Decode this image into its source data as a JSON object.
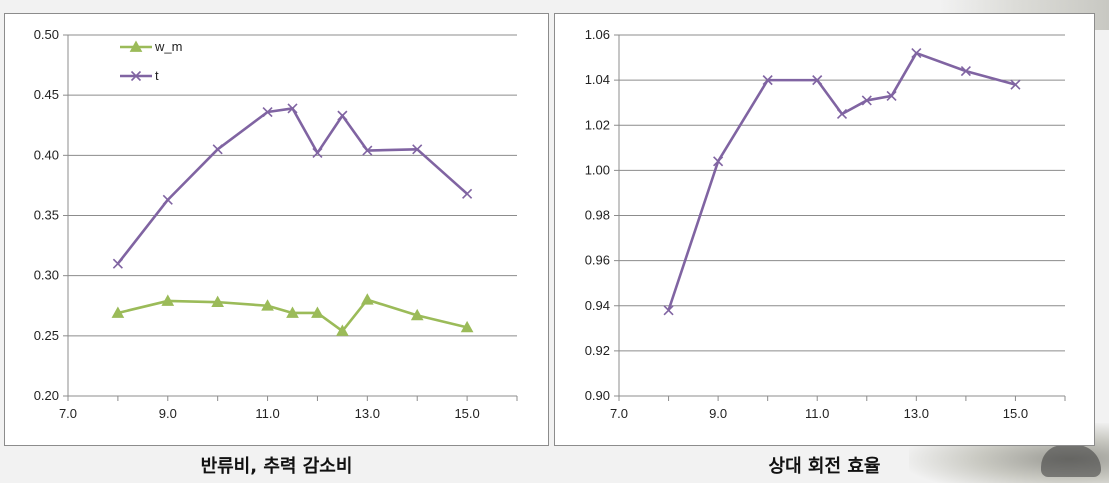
{
  "colors": {
    "w_m": "#9bbb59",
    "t": "#8064a2",
    "grid": "#8c8c8c",
    "axis": "#8c8c8c"
  },
  "chart_data": [
    {
      "type": "line",
      "caption": "반류비, 추력 감소비",
      "xlim": [
        7.0,
        16.0
      ],
      "ylim": [
        0.2,
        0.5
      ],
      "x_ticks": [
        "7.0",
        "9.0",
        "11.0",
        "13.0",
        "15.0"
      ],
      "y_ticks": [
        "0.20",
        "0.25",
        "0.30",
        "0.35",
        "0.40",
        "0.45",
        "0.50"
      ],
      "grid": "horizontal",
      "legend": "top-left",
      "series": [
        {
          "name": "w_m",
          "marker": "triangle",
          "color": "#9bbb59",
          "x": [
            8,
            9,
            10,
            11,
            11.5,
            12,
            12.5,
            13,
            14,
            15
          ],
          "y": [
            0.269,
            0.279,
            0.278,
            0.275,
            0.269,
            0.269,
            0.254,
            0.28,
            0.267,
            0.257
          ]
        },
        {
          "name": "t",
          "marker": "x",
          "color": "#8064a2",
          "x": [
            8,
            9,
            10,
            11,
            11.5,
            12,
            12.5,
            13,
            14,
            15
          ],
          "y": [
            0.31,
            0.363,
            0.405,
            0.436,
            0.439,
            0.402,
            0.433,
            0.404,
            0.405,
            0.368
          ]
        }
      ]
    },
    {
      "type": "line",
      "caption": "상대 회전 효율",
      "xlim": [
        7.0,
        16.0
      ],
      "ylim": [
        0.9,
        1.06
      ],
      "x_ticks": [
        "7.0",
        "9.0",
        "11.0",
        "13.0",
        "15.0"
      ],
      "y_ticks": [
        "0.90",
        "0.92",
        "0.94",
        "0.96",
        "0.98",
        "1.00",
        "1.02",
        "1.04",
        "1.06"
      ],
      "grid": "horizontal",
      "legend": "none",
      "series": [
        {
          "marker": "x",
          "color": "#8064a2",
          "x": [
            8,
            9,
            10,
            11,
            11.5,
            12,
            12.5,
            13,
            14,
            15
          ],
          "y": [
            0.938,
            1.004,
            1.04,
            1.04,
            1.025,
            1.031,
            1.033,
            1.052,
            1.044,
            1.038
          ]
        }
      ]
    }
  ]
}
